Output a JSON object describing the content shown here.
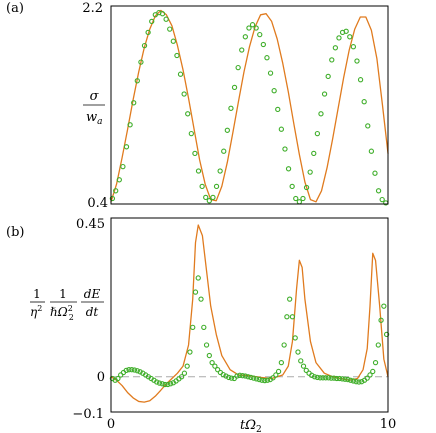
{
  "chart_data": [
    {
      "type": "line",
      "panel_label": "(a)",
      "ylabel": {
        "num": "σ",
        "den": "w",
        "den_sub": "a"
      },
      "xlim": [
        0,
        10
      ],
      "ylim": [
        0.4,
        2.2
      ],
      "ytick_labels": [
        "2.2",
        "0.4"
      ],
      "series": [
        {
          "kind": "line",
          "color": "#e07b1f",
          "x": [
            0,
            0.2,
            0.4,
            0.6,
            0.8,
            1.0,
            1.2,
            1.4,
            1.6,
            1.8,
            2.0,
            2.2,
            2.4,
            2.6,
            2.8,
            3.0,
            3.2,
            3.4,
            3.6,
            3.8,
            4.0,
            4.2,
            4.4,
            4.6,
            4.8,
            5.0,
            5.2,
            5.4,
            5.6,
            5.8,
            6.0,
            6.2,
            6.4,
            6.6,
            6.8,
            7.0,
            7.2,
            7.4,
            7.6,
            7.8,
            8.0,
            8.2,
            8.4,
            8.6,
            8.8,
            9.0,
            9.2,
            9.4,
            9.6,
            9.8,
            10.0
          ],
          "y": [
            0.42,
            0.58,
            0.82,
            1.08,
            1.35,
            1.6,
            1.82,
            1.99,
            2.11,
            2.16,
            2.12,
            2.02,
            1.84,
            1.62,
            1.36,
            1.08,
            0.8,
            0.58,
            0.44,
            0.43,
            0.56,
            0.78,
            1.05,
            1.33,
            1.6,
            1.83,
            2.01,
            2.12,
            2.13,
            2.06,
            1.9,
            1.68,
            1.42,
            1.13,
            0.85,
            0.6,
            0.44,
            0.42,
            0.52,
            0.73,
            0.99,
            1.27,
            1.55,
            1.8,
            1.99,
            2.1,
            2.1,
            1.98,
            1.72,
            1.3,
            0.86
          ]
        },
        {
          "kind": "scatter",
          "color": "#3fae2a",
          "x": [
            0.05,
            0.17,
            0.3,
            0.43,
            0.56,
            0.69,
            0.82,
            0.95,
            1.08,
            1.21,
            1.34,
            1.47,
            1.6,
            1.73,
            1.86,
            1.99,
            2.12,
            2.25,
            2.38,
            2.51,
            2.64,
            2.77,
            2.9,
            3.03,
            3.16,
            3.29,
            3.42,
            3.55,
            3.68,
            3.81,
            3.94,
            4.07,
            4.2,
            4.33,
            4.46,
            4.59,
            4.72,
            4.85,
            4.98,
            5.11,
            5.24,
            5.37,
            5.5,
            5.63,
            5.76,
            5.89,
            6.02,
            6.15,
            6.28,
            6.41,
            6.54,
            6.67,
            6.8,
            6.93,
            7.06,
            7.19,
            7.32,
            7.45,
            7.58,
            7.71,
            7.84,
            7.97,
            8.1,
            8.23,
            8.36,
            8.49,
            8.62,
            8.75,
            8.88,
            9.01,
            9.14,
            9.27,
            9.4,
            9.53,
            9.66,
            9.79,
            9.92
          ],
          "y": [
            0.45,
            0.52,
            0.62,
            0.74,
            0.92,
            1.12,
            1.32,
            1.52,
            1.69,
            1.84,
            1.96,
            2.06,
            2.12,
            2.14,
            2.13,
            2.08,
            1.99,
            1.88,
            1.75,
            1.58,
            1.4,
            1.22,
            1.04,
            0.86,
            0.7,
            0.56,
            0.46,
            0.43,
            0.46,
            0.56,
            0.7,
            0.88,
            1.07,
            1.27,
            1.46,
            1.64,
            1.8,
            1.92,
            2.0,
            2.03,
            2.0,
            1.94,
            1.85,
            1.73,
            1.59,
            1.43,
            1.26,
            1.08,
            0.9,
            0.72,
            0.56,
            0.45,
            0.42,
            0.45,
            0.55,
            0.69,
            0.86,
            1.04,
            1.22,
            1.4,
            1.56,
            1.71,
            1.82,
            1.91,
            1.96,
            1.97,
            1.92,
            1.83,
            1.7,
            1.53,
            1.33,
            1.11,
            0.88,
            0.68,
            0.52,
            0.44,
            0.41
          ]
        }
      ]
    },
    {
      "type": "line",
      "panel_label": "(b)",
      "ylabel": {
        "f1_num": "1",
        "f1_den": "η",
        "f1_den_sup": "2",
        "f2_num": "1",
        "f2_den": "ℏΩ",
        "f2_den_sup": "2",
        "f2_den_sub": "2",
        "f3_num": "dE",
        "f3_den": "dt"
      },
      "xlabel": {
        "main": "tΩ",
        "sub": "2"
      },
      "xlim": [
        0,
        10
      ],
      "ylim": [
        -0.1,
        0.45
      ],
      "ytick_labels": [
        "0.45",
        "0",
        "−0.1"
      ],
      "xtick_labels": [
        "0",
        "10"
      ],
      "reference_line": {
        "y": 0,
        "color": "#aaaaaa"
      },
      "series": [
        {
          "kind": "line",
          "color": "#e07b1f",
          "x": [
            0,
            0.2,
            0.4,
            0.6,
            0.8,
            1.0,
            1.2,
            1.4,
            1.6,
            1.8,
            2.0,
            2.2,
            2.4,
            2.6,
            2.8,
            2.95,
            3.05,
            3.15,
            3.3,
            3.45,
            3.6,
            3.8,
            4.0,
            4.3,
            4.6,
            5.0,
            5.4,
            5.8,
            6.2,
            6.4,
            6.55,
            6.7,
            6.8,
            6.9,
            7.0,
            7.2,
            7.4,
            7.7,
            8.0,
            8.3,
            8.6,
            8.9,
            9.1,
            9.25,
            9.35,
            9.45,
            9.55,
            9.7,
            9.85,
            10.0
          ],
          "y": [
            0.0,
            -0.01,
            -0.025,
            -0.045,
            -0.06,
            -0.07,
            -0.072,
            -0.068,
            -0.055,
            -0.038,
            -0.02,
            -0.005,
            0.01,
            0.03,
            0.09,
            0.22,
            0.38,
            0.43,
            0.4,
            0.3,
            0.2,
            0.12,
            0.06,
            0.02,
            0.005,
            0.003,
            -0.002,
            -0.005,
            0.005,
            0.03,
            0.1,
            0.25,
            0.33,
            0.31,
            0.22,
            0.1,
            0.04,
            0.01,
            0.0,
            -0.005,
            -0.01,
            -0.005,
            0.02,
            0.08,
            0.2,
            0.35,
            0.33,
            0.2,
            0.05,
            0.0
          ]
        },
        {
          "kind": "scatter",
          "color": "#3fae2a",
          "x": [
            0.05,
            0.15,
            0.25,
            0.35,
            0.45,
            0.55,
            0.65,
            0.75,
            0.85,
            0.95,
            1.05,
            1.15,
            1.25,
            1.35,
            1.45,
            1.55,
            1.65,
            1.75,
            1.85,
            1.95,
            2.05,
            2.15,
            2.25,
            2.35,
            2.45,
            2.55,
            2.65,
            2.75,
            2.85,
            2.95,
            3.05,
            3.15,
            3.25,
            3.35,
            3.45,
            3.55,
            3.65,
            3.75,
            3.85,
            3.95,
            4.05,
            4.15,
            4.25,
            4.35,
            4.45,
            4.55,
            4.65,
            4.75,
            4.85,
            4.95,
            5.05,
            5.15,
            5.25,
            5.35,
            5.45,
            5.55,
            5.65,
            5.75,
            5.85,
            5.95,
            6.05,
            6.15,
            6.25,
            6.35,
            6.45,
            6.55,
            6.65,
            6.75,
            6.85,
            6.95,
            7.05,
            7.15,
            7.25,
            7.35,
            7.45,
            7.55,
            7.65,
            7.75,
            7.85,
            7.95,
            8.05,
            8.15,
            8.25,
            8.35,
            8.45,
            8.55,
            8.65,
            8.75,
            8.85,
            8.95,
            9.05,
            9.15,
            9.25,
            9.35,
            9.45,
            9.55,
            9.65,
            9.75,
            9.85,
            9.95
          ],
          "y": [
            -0.005,
            -0.01,
            -0.005,
            0.005,
            0.012,
            0.018,
            0.02,
            0.02,
            0.019,
            0.017,
            0.014,
            0.01,
            0.005,
            0.0,
            -0.005,
            -0.01,
            -0.015,
            -0.018,
            -0.02,
            -0.022,
            -0.022,
            -0.02,
            -0.017,
            -0.012,
            -0.006,
            0.0,
            0.01,
            0.03,
            0.07,
            0.14,
            0.24,
            0.28,
            0.22,
            0.14,
            0.09,
            0.06,
            0.04,
            0.03,
            0.02,
            0.012,
            0.006,
            0.002,
            -0.002,
            -0.004,
            -0.005,
            0.002,
            0.004,
            0.003,
            0.002,
            0.0,
            -0.002,
            -0.004,
            -0.006,
            -0.008,
            -0.01,
            -0.011,
            -0.01,
            -0.008,
            -0.003,
            0.005,
            0.015,
            0.04,
            0.09,
            0.17,
            0.22,
            0.17,
            0.11,
            0.07,
            0.045,
            0.03,
            0.018,
            0.01,
            0.004,
            0.0,
            -0.002,
            -0.003,
            -0.003,
            -0.003,
            -0.003,
            -0.004,
            -0.004,
            -0.005,
            -0.005,
            -0.006,
            -0.007,
            -0.008,
            -0.01,
            -0.012,
            -0.014,
            -0.015,
            -0.014,
            -0.01,
            -0.004,
            0.005,
            0.015,
            0.04,
            0.09,
            0.16,
            0.2,
            0.12
          ]
        }
      ]
    }
  ]
}
